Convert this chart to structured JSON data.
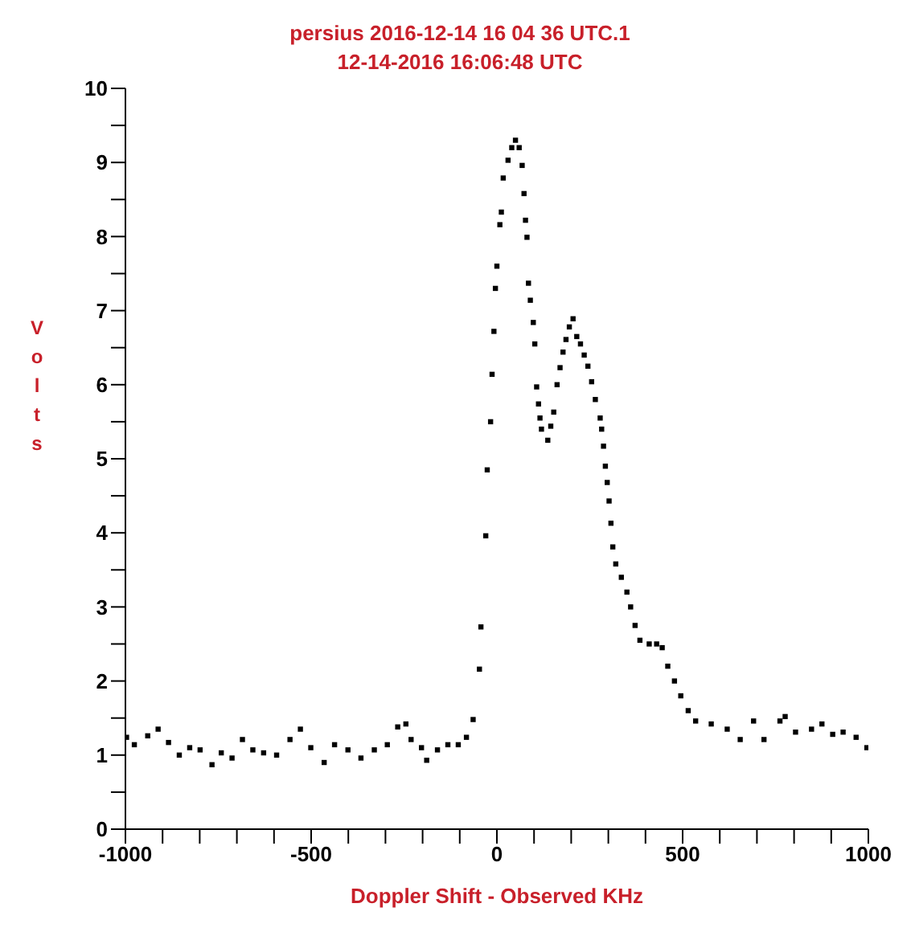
{
  "chart_data": {
    "type": "scatter",
    "title": "persius 2016-12-14 16 04 36 UTC.1",
    "subtitle": "12-14-2016  16:06:48 UTC",
    "xlabel": "Doppler Shift - Observed KHz",
    "ylabel": "Volts",
    "x": [
      -997,
      -976,
      -940,
      -912,
      -884,
      -855,
      -827,
      -799,
      -767,
      -742,
      -713,
      -685,
      -657,
      -628,
      -593,
      -557,
      -529,
      -501,
      -465,
      -437,
      -401,
      -366,
      -330,
      -295,
      -267,
      -245,
      -231,
      -203,
      -189,
      -160,
      -132,
      -104,
      -82,
      -64,
      -47,
      -43,
      -30,
      -26,
      -17,
      -13,
      -8,
      -4,
      0,
      8,
      12,
      17,
      30,
      40,
      50,
      60,
      68,
      73,
      77,
      81,
      85,
      90,
      98,
      102,
      107,
      112,
      116,
      120,
      137,
      145,
      153,
      162,
      170,
      178,
      186,
      195,
      205,
      215,
      225,
      235,
      245,
      255,
      265,
      278,
      282,
      287,
      292,
      297,
      302,
      307,
      312,
      320,
      335,
      350,
      360,
      372,
      385,
      410,
      430,
      445,
      460,
      478,
      495,
      515,
      535,
      577,
      620,
      655,
      691,
      719,
      762,
      776,
      804,
      847,
      875,
      904,
      932,
      967,
      996
    ],
    "series": [
      {
        "color": "#000000",
        "values": [
          1.24,
          1.14,
          1.26,
          1.35,
          1.17,
          1.0,
          1.1,
          1.07,
          0.87,
          1.03,
          0.96,
          1.21,
          1.07,
          1.03,
          1.0,
          1.21,
          1.35,
          1.1,
          0.9,
          1.14,
          1.07,
          0.96,
          1.07,
          1.14,
          1.38,
          1.42,
          1.21,
          1.1,
          0.93,
          1.07,
          1.14,
          1.14,
          1.24,
          1.48,
          2.16,
          2.73,
          3.96,
          4.85,
          5.5,
          6.14,
          6.72,
          7.3,
          7.6,
          8.16,
          8.33,
          8.79,
          9.03,
          9.2,
          9.3,
          9.2,
          8.96,
          8.58,
          8.22,
          7.99,
          7.37,
          7.14,
          6.84,
          6.55,
          5.97,
          5.74,
          5.55,
          5.4,
          5.25,
          5.44,
          5.63,
          6.0,
          6.23,
          6.44,
          6.61,
          6.78,
          6.89,
          6.65,
          6.55,
          6.4,
          6.25,
          6.04,
          5.8,
          5.55,
          5.4,
          5.17,
          4.9,
          4.68,
          4.43,
          4.13,
          3.81,
          3.58,
          3.4,
          3.2,
          3.0,
          2.75,
          2.55,
          2.5,
          2.5,
          2.45,
          2.2,
          2.0,
          1.8,
          1.6,
          1.46,
          1.42,
          1.35,
          1.21,
          1.46,
          1.21,
          1.46,
          1.52,
          1.31,
          1.35,
          1.42,
          1.28,
          1.31,
          1.24,
          1.1
        ]
      }
    ],
    "xlim": [
      -1000,
      1000
    ],
    "xticks": [
      -1000,
      {
        "value": -900,
        "label": null
      },
      {
        "value": -800,
        "label": null
      },
      {
        "value": -700,
        "label": null
      },
      {
        "value": -600,
        "label": null
      },
      -500,
      {
        "value": -400,
        "label": null
      },
      {
        "value": -300,
        "label": null
      },
      {
        "value": -200,
        "label": null
      },
      {
        "value": -100,
        "label": null
      },
      0,
      {
        "value": 100,
        "label": null
      },
      {
        "value": 200,
        "label": null
      },
      {
        "value": 300,
        "label": null
      },
      {
        "value": 400,
        "label": null
      },
      500,
      {
        "value": 600,
        "label": null
      },
      {
        "value": 700,
        "label": null
      },
      {
        "value": 800,
        "label": null
      },
      {
        "value": 900,
        "label": null
      },
      1000
    ],
    "ylim": [
      0,
      10
    ],
    "yticks": [
      0,
      {
        "value": 0.5,
        "label": null
      },
      1,
      {
        "value": 1.5,
        "label": null
      },
      2,
      {
        "value": 2.5,
        "label": null
      },
      3,
      {
        "value": 3.5,
        "label": null
      },
      4,
      {
        "value": 4.5,
        "label": null
      },
      5,
      {
        "value": 5.5,
        "label": null
      },
      6,
      {
        "value": 6.5,
        "label": null
      },
      7,
      {
        "value": 7.5,
        "label": null
      },
      8,
      {
        "value": 8.5,
        "label": null
      },
      9,
      {
        "value": 9.5,
        "label": null
      },
      10
    ],
    "grid": false,
    "legend": false,
    "marker": "square"
  }
}
